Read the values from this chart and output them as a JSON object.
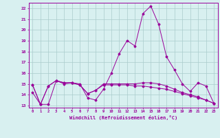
{
  "x": [
    0,
    1,
    2,
    3,
    4,
    5,
    6,
    7,
    8,
    9,
    10,
    11,
    12,
    13,
    14,
    15,
    16,
    17,
    18,
    19,
    20,
    21,
    22,
    23
  ],
  "line1": [
    14.2,
    13.1,
    13.1,
    15.3,
    15.0,
    15.1,
    15.0,
    13.7,
    13.5,
    14.5,
    16.0,
    17.8,
    19.0,
    18.5,
    21.5,
    22.2,
    20.5,
    17.5,
    16.3,
    15.0,
    14.3,
    15.1,
    14.8,
    13.2
  ],
  "line2": [
    14.9,
    13.1,
    14.8,
    15.3,
    15.1,
    15.1,
    14.9,
    14.1,
    14.4,
    15.0,
    15.0,
    15.0,
    15.0,
    15.0,
    15.1,
    15.1,
    15.0,
    14.8,
    14.5,
    14.2,
    14.0,
    13.8,
    13.5,
    13.2
  ],
  "line3": [
    14.9,
    13.1,
    14.8,
    15.3,
    15.1,
    15.1,
    14.9,
    14.1,
    14.4,
    14.9,
    14.9,
    14.9,
    14.9,
    14.8,
    14.8,
    14.7,
    14.6,
    14.5,
    14.3,
    14.1,
    13.9,
    13.7,
    13.5,
    13.2
  ],
  "line_color": "#990099",
  "bg_color": "#d8f0f0",
  "grid_color": "#aacccc",
  "xlabel": "Windchill (Refroidissement éolien,°C)",
  "ylim": [
    12.8,
    22.5
  ],
  "xlim": [
    -0.5,
    23.5
  ],
  "yticks": [
    13,
    14,
    15,
    16,
    17,
    18,
    19,
    20,
    21,
    22
  ],
  "xticks": [
    0,
    1,
    2,
    3,
    4,
    5,
    6,
    7,
    8,
    9,
    10,
    11,
    12,
    13,
    14,
    15,
    16,
    17,
    18,
    19,
    20,
    21,
    22,
    23
  ]
}
